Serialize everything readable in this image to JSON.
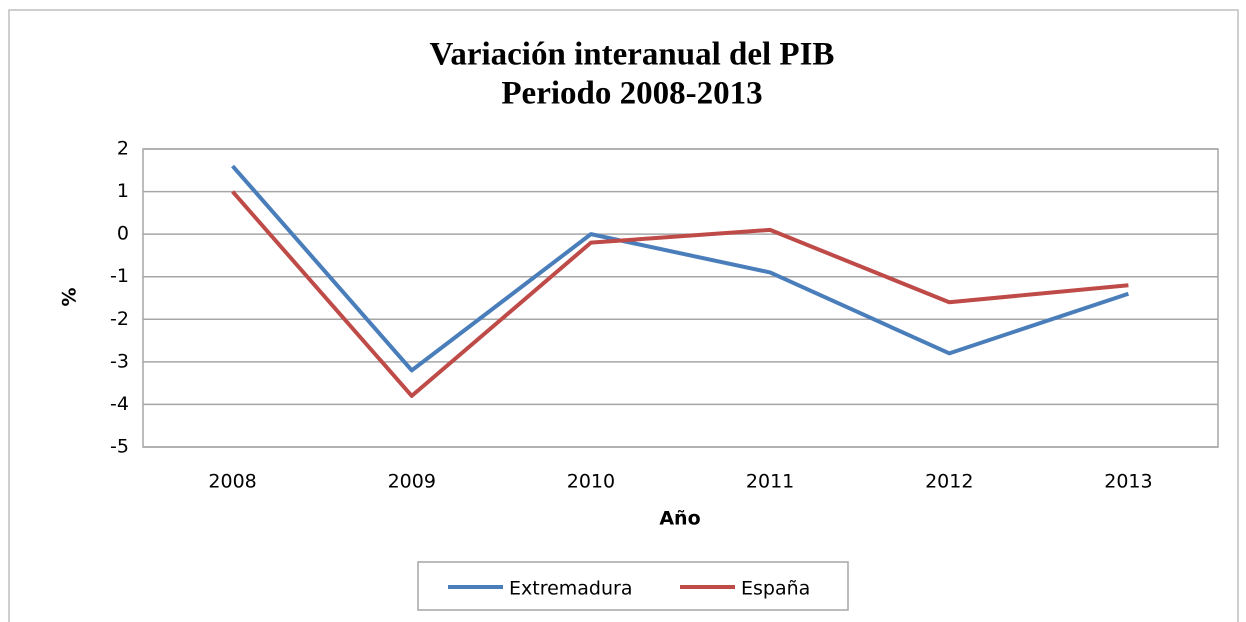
{
  "chart_data": {
    "type": "line",
    "title": "Variación interanual del PIB",
    "subtitle": "Periodo 2008-2013",
    "x_label": "Año",
    "y_label": "%",
    "categories": [
      "2008",
      "2009",
      "2010",
      "2011",
      "2012",
      "2013"
    ],
    "series": [
      {
        "name": "Extremadura",
        "color": "#4a7ebb",
        "values": [
          1.6,
          -3.2,
          0,
          -0.9,
          -2.8,
          -1.4
        ]
      },
      {
        "name": "España",
        "color": "#be4b48",
        "values": [
          1.0,
          -3.8,
          -0.2,
          0.1,
          -1.6,
          -1.2
        ]
      }
    ],
    "ylim": [
      -5,
      2
    ],
    "yticks": [
      2,
      1,
      0,
      -1,
      -2,
      -3,
      -4,
      -5
    ],
    "grid": true,
    "legend": "bottom"
  }
}
